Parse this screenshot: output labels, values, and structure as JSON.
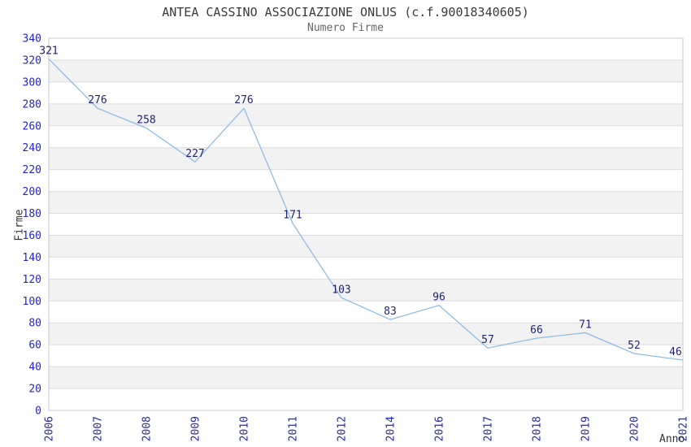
{
  "header": {
    "title": "ANTEA CASSINO ASSOCIAZIONE ONLUS (c.f.90018340605)",
    "subtitle": "Numero Firme"
  },
  "chart_data": {
    "type": "line",
    "title": "ANTEA CASSINO ASSOCIAZIONE ONLUS (c.f.90018340605)",
    "subtitle": "Numero Firme",
    "xlabel": "Anno",
    "ylabel": "Firme",
    "categories": [
      "2006",
      "2007",
      "2008",
      "2009",
      "2010",
      "2011",
      "2012",
      "2014",
      "2016",
      "2017",
      "2018",
      "2019",
      "2020",
      "2021"
    ],
    "values": [
      321,
      276,
      258,
      227,
      276,
      171,
      103,
      83,
      96,
      57,
      66,
      71,
      52,
      46
    ],
    "ylim": [
      0,
      340
    ],
    "ytick_step": 20,
    "grid": "horizontal-bands",
    "legend": "none",
    "markers": "none",
    "data_labels_visible": true,
    "x_tick_rotation_deg": 90,
    "colors": {
      "line": "#8fbbe8",
      "tick_label": "#2323cc",
      "data_label": "#1f1f77",
      "band_gray": "#f2f2f2",
      "grid_line": "#dcdcdc",
      "plot_border": "#c8c8c8",
      "plot_background": "#ffffff",
      "title": "#3a3a3a",
      "subtitle": "#666666",
      "axis_title": "#333333",
      "page_background": "#ffffff"
    }
  }
}
